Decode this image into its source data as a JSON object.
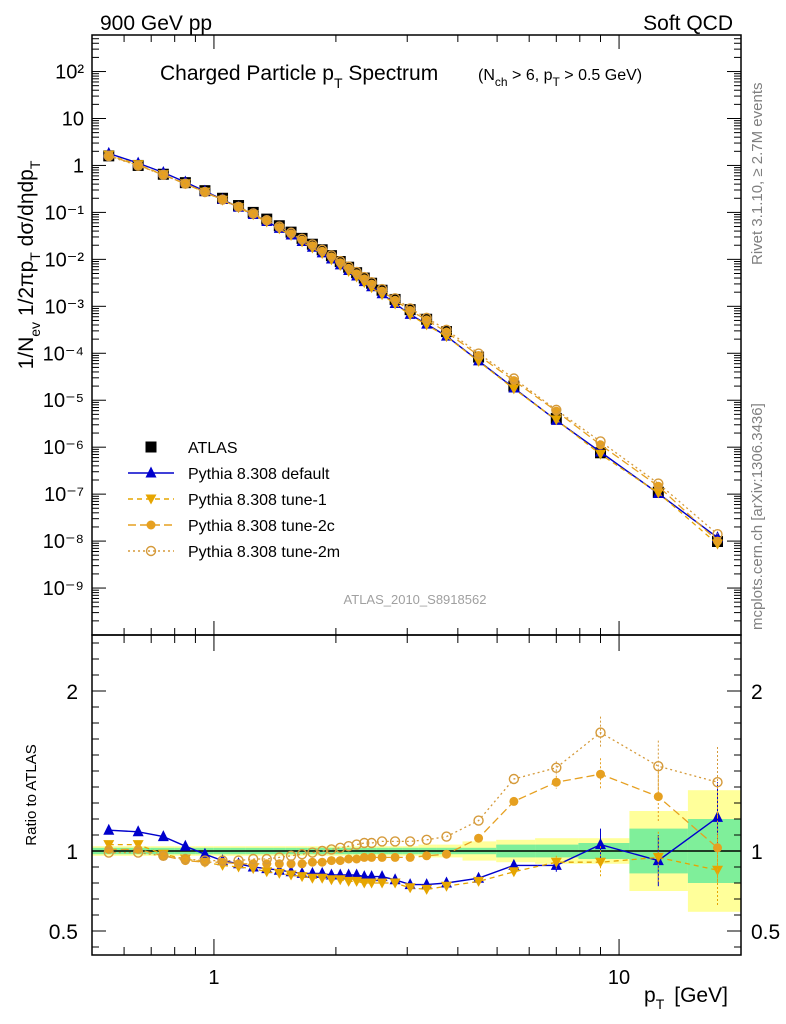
{
  "header": {
    "left": "900 GeV pp",
    "right": "Soft QCD"
  },
  "side_text": {
    "rivet": "Rivet 3.1.10, ≥ 2.7M events",
    "mcplots": "mcplots.cern.ch [arXiv:1306.3436]"
  },
  "chart_data": [
    {
      "type": "scatter",
      "title_main": "Charged Particle p",
      "title_sub": "T",
      "title_main2": " Spectrum",
      "title_cut": "(N",
      "title_cut_sub": "ch",
      "title_cut2": " > 6, p",
      "title_cut_sub2": "T",
      "title_cut3": " > 0.5 GeV)",
      "ylabel_parts": [
        "1/N",
        "ev",
        " 1/2πp",
        "T",
        " dσ/dηdp",
        "T"
      ],
      "xscale": "log",
      "yscale": "log",
      "xlim": [
        0.5,
        20
      ],
      "ylim": [
        1e-10,
        600
      ],
      "watermark": "ATLAS_2010_S8918562",
      "y_tick_labels": [
        "10⁻⁹",
        "10⁻⁸",
        "10⁻⁷",
        "10⁻⁶",
        "10⁻⁵",
        "10⁻⁴",
        "10⁻³",
        "10⁻²",
        "10⁻¹",
        "1",
        "10",
        "10²"
      ],
      "x": [
        0.55,
        0.65,
        0.75,
        0.85,
        0.95,
        1.05,
        1.15,
        1.25,
        1.35,
        1.45,
        1.55,
        1.65,
        1.75,
        1.85,
        1.95,
        2.05,
        2.15,
        2.25,
        2.35,
        2.45,
        2.6,
        2.8,
        3.05,
        3.35,
        3.75,
        4.5,
        5.5,
        7.0,
        9.0,
        12.5,
        17.5
      ],
      "atlas": [
        1.6,
        1.0,
        0.65,
        0.43,
        0.29,
        0.2,
        0.14,
        0.1,
        0.072,
        0.052,
        0.038,
        0.028,
        0.021,
        0.016,
        0.012,
        0.009,
        0.0068,
        0.0052,
        0.004,
        0.0031,
        0.0022,
        0.0014,
        0.00085,
        0.00053,
        0.00029,
        8.3e-05,
        2e-05,
        4.1e-06,
        7.6e-07,
        1.1e-07,
        9.8e-09
      ],
      "series": [
        {
          "name": "ATLAS",
          "color": "#000000",
          "marker": "square"
        },
        {
          "name": "Pythia 8.308 default",
          "color": "#0000cc",
          "marker": "triangle-up",
          "ratio": [
            1.13,
            1.12,
            1.09,
            1.03,
            0.98,
            0.94,
            0.92,
            0.9,
            0.89,
            0.88,
            0.87,
            0.86,
            0.86,
            0.86,
            0.85,
            0.85,
            0.85,
            0.85,
            0.84,
            0.84,
            0.84,
            0.82,
            0.79,
            0.79,
            0.8,
            0.83,
            0.91,
            0.91,
            1.04,
            0.94,
            1.21
          ]
        },
        {
          "name": "Pythia 8.308 tune-1",
          "color": "#e6a500",
          "marker": "triangle-down",
          "ratio": [
            1.04,
            1.04,
            0.98,
            0.95,
            0.93,
            0.91,
            0.9,
            0.89,
            0.87,
            0.86,
            0.85,
            0.84,
            0.83,
            0.83,
            0.82,
            0.82,
            0.81,
            0.81,
            0.8,
            0.8,
            0.8,
            0.8,
            0.77,
            0.76,
            0.78,
            0.81,
            0.87,
            0.93,
            0.93,
            0.96,
            0.88
          ]
        },
        {
          "name": "Pythia 8.308 tune-2c",
          "color": "#e6a020",
          "marker": "circle",
          "ratio": [
            1.01,
            1.01,
            0.97,
            0.94,
            0.93,
            0.93,
            0.92,
            0.92,
            0.92,
            0.92,
            0.92,
            0.92,
            0.93,
            0.93,
            0.94,
            0.94,
            0.95,
            0.95,
            0.96,
            0.96,
            0.96,
            0.96,
            0.96,
            0.97,
            0.98,
            1.08,
            1.31,
            1.43,
            1.48,
            1.34,
            1.02
          ]
        },
        {
          "name": "Pythia 8.308 tune-2m",
          "color": "#d59a3a",
          "marker": "circle-open",
          "ratio": [
            0.99,
            0.99,
            0.97,
            0.95,
            0.94,
            0.94,
            0.94,
            0.95,
            0.95,
            0.96,
            0.97,
            0.98,
            0.99,
            1.0,
            1.01,
            1.02,
            1.03,
            1.04,
            1.05,
            1.05,
            1.06,
            1.06,
            1.06,
            1.07,
            1.09,
            1.19,
            1.45,
            1.52,
            1.74,
            1.53,
            1.43
          ]
        }
      ],
      "legend_position": "lower-left"
    },
    {
      "type": "scatter",
      "ylabel": "Ratio to ATLAS",
      "xlabel_main": "p",
      "xlabel_sub": "T",
      "xlabel_unit": "[GeV]",
      "xscale": "log",
      "xlim": [
        0.5,
        20
      ],
      "ylim": [
        0.35,
        2.35
      ],
      "y_tick_labels": [
        "0.5",
        "1",
        "2"
      ],
      "x_tick_labels": [
        "1",
        "10"
      ],
      "band_green_color": "#7fef9a",
      "band_yellow_color": "#ffff9a"
    }
  ]
}
